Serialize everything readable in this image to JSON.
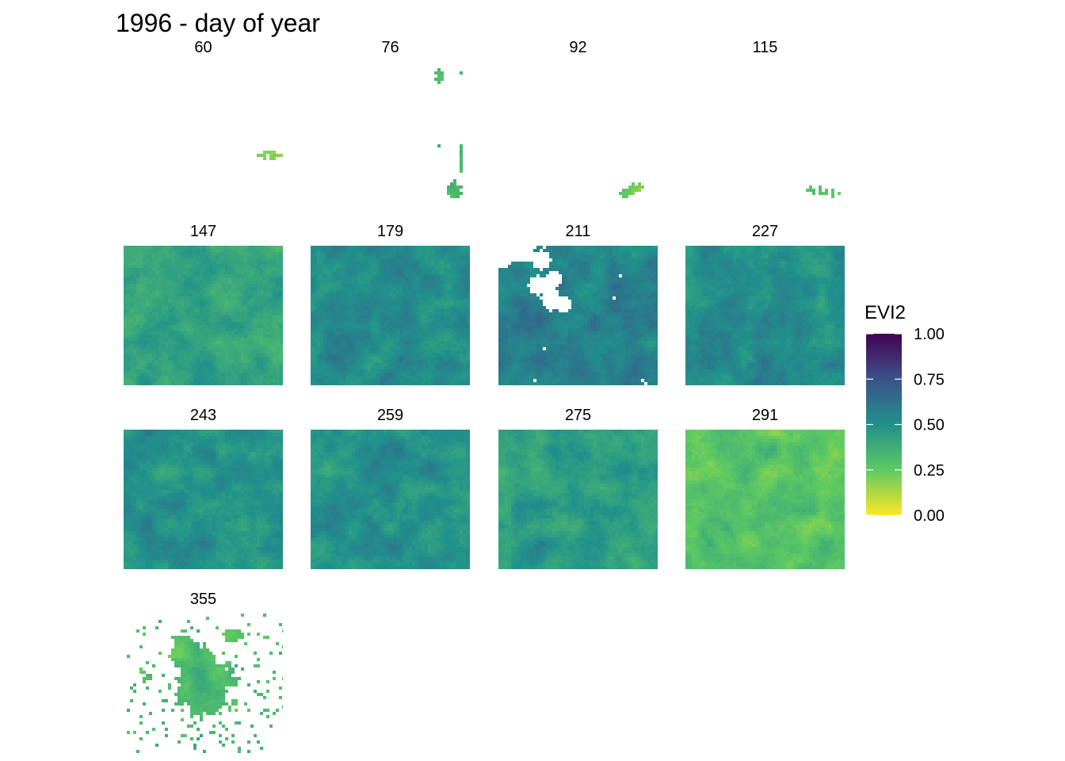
{
  "chart_data": {
    "type": "heatmap",
    "title": "1996 - day of year",
    "facet_labels": [
      "60",
      "76",
      "92",
      "115",
      "147",
      "179",
      "211",
      "227",
      "243",
      "259",
      "275",
      "291",
      "355"
    ],
    "ncol": 4,
    "fill_scale": {
      "name": "EVI2",
      "palette": "viridis",
      "direction": "reversed",
      "colors_low_to_high": [
        "#fde725",
        "#5ec962",
        "#21918c",
        "#3b528b",
        "#440154"
      ],
      "limits": [
        0.0,
        1.0
      ],
      "breaks": [
        0.0,
        0.25,
        0.5,
        0.75,
        1.0
      ],
      "break_labels": [
        "0.00",
        "0.25",
        "0.50",
        "0.75",
        "1.00"
      ]
    },
    "panels": [
      {
        "day": "60",
        "coverage": 0.003,
        "mean_evi2": 0.18
      },
      {
        "day": "76",
        "coverage": 0.02,
        "mean_evi2": 0.35
      },
      {
        "day": "92",
        "coverage": 0.01,
        "mean_evi2": 0.25
      },
      {
        "day": "115",
        "coverage": 0.01,
        "mean_evi2": 0.25
      },
      {
        "day": "147",
        "coverage": 1.0,
        "mean_evi2": 0.42
      },
      {
        "day": "179",
        "coverage": 1.0,
        "mean_evi2": 0.52
      },
      {
        "day": "211",
        "coverage": 0.88,
        "mean_evi2": 0.56
      },
      {
        "day": "227",
        "coverage": 1.0,
        "mean_evi2": 0.52
      },
      {
        "day": "243",
        "coverage": 1.0,
        "mean_evi2": 0.5
      },
      {
        "day": "259",
        "coverage": 1.0,
        "mean_evi2": 0.5
      },
      {
        "day": "275",
        "coverage": 1.0,
        "mean_evi2": 0.44
      },
      {
        "day": "291",
        "coverage": 1.0,
        "mean_evi2": 0.28
      },
      {
        "day": "355",
        "coverage": 0.35,
        "mean_evi2": 0.32
      }
    ]
  }
}
